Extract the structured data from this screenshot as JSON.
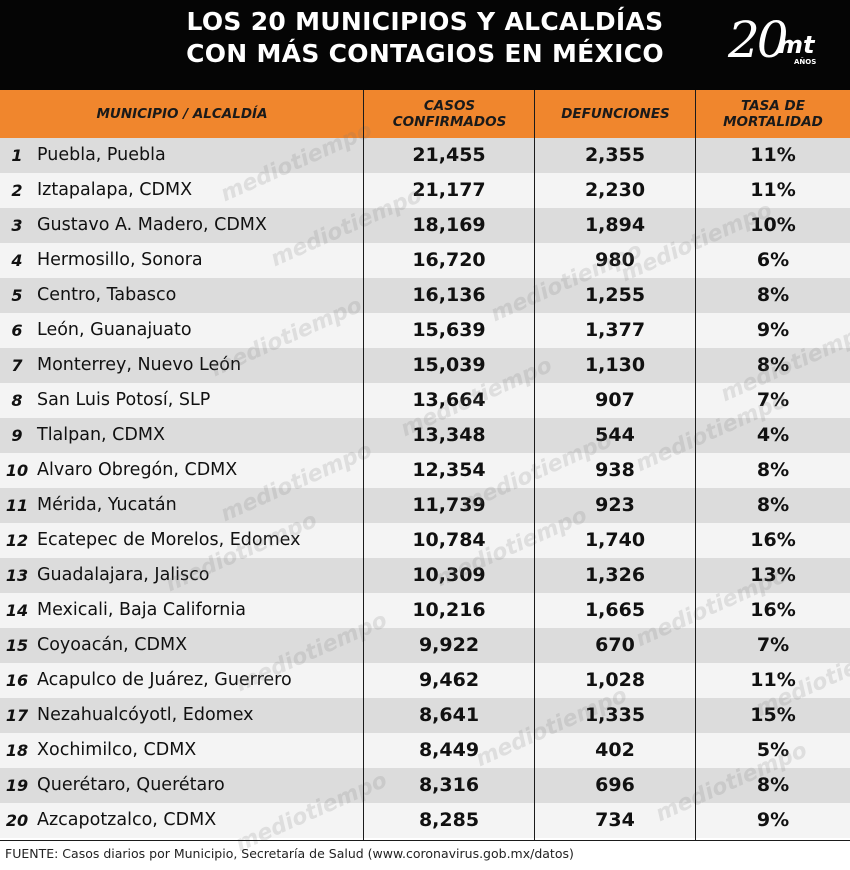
{
  "header": {
    "title_line1": "LOS 20 MUNICIPIOS Y ALCALDÍAS",
    "title_line2": "CON MÁS CONTAGIOS EN MÉXICO",
    "logo_number": "20",
    "logo_brand": "mt",
    "logo_sub": "AÑOS"
  },
  "watermark_text": "mediotiempo",
  "chart_data": {
    "type": "table",
    "columns": [
      {
        "line1": "MUNICIPIO / ALCALDÍA",
        "line2": ""
      },
      {
        "line1": "CASOS",
        "line2": "CONFIRMADOS"
      },
      {
        "line1": "DEFUNCIONES",
        "line2": ""
      },
      {
        "line1": "TASA DE",
        "line2": "MORTALIDAD"
      }
    ],
    "rows": [
      {
        "rank": "1",
        "name": "Puebla, Puebla",
        "cases": "21,455",
        "deaths": "2,355",
        "rate": "11%"
      },
      {
        "rank": "2",
        "name": "Iztapalapa, CDMX",
        "cases": "21,177",
        "deaths": "2,230",
        "rate": "11%"
      },
      {
        "rank": "3",
        "name": "Gustavo A. Madero, CDMX",
        "cases": "18,169",
        "deaths": "1,894",
        "rate": "10%"
      },
      {
        "rank": "4",
        "name": "Hermosillo, Sonora",
        "cases": "16,720",
        "deaths": "980",
        "rate": "6%"
      },
      {
        "rank": "5",
        "name": "Centro, Tabasco",
        "cases": "16,136",
        "deaths": "1,255",
        "rate": "8%"
      },
      {
        "rank": "6",
        "name": "León, Guanajuato",
        "cases": "15,639",
        "deaths": "1,377",
        "rate": "9%"
      },
      {
        "rank": "7",
        "name": "Monterrey, Nuevo León",
        "cases": "15,039",
        "deaths": "1,130",
        "rate": "8%"
      },
      {
        "rank": "8",
        "name": "San Luis Potosí, SLP",
        "cases": "13,664",
        "deaths": "907",
        "rate": "7%"
      },
      {
        "rank": "9",
        "name": "Tlalpan, CDMX",
        "cases": "13,348",
        "deaths": "544",
        "rate": "4%"
      },
      {
        "rank": "10",
        "name": "Alvaro Obregón, CDMX",
        "cases": "12,354",
        "deaths": "938",
        "rate": "8%"
      },
      {
        "rank": "11",
        "name": "Mérida, Yucatán",
        "cases": "11,739",
        "deaths": "923",
        "rate": "8%"
      },
      {
        "rank": "12",
        "name": "Ecatepec de Morelos, Edomex",
        "cases": "10,784",
        "deaths": "1,740",
        "rate": "16%"
      },
      {
        "rank": "13",
        "name": "Guadalajara, Jalisco",
        "cases": "10,309",
        "deaths": "1,326",
        "rate": "13%"
      },
      {
        "rank": "14",
        "name": "Mexicali, Baja California",
        "cases": "10,216",
        "deaths": "1,665",
        "rate": "16%"
      },
      {
        "rank": "15",
        "name": "Coyoacán, CDMX",
        "cases": "9,922",
        "deaths": "670",
        "rate": "7%"
      },
      {
        "rank": "16",
        "name": "Acapulco de Juárez, Guerrero",
        "cases": "9,462",
        "deaths": "1,028",
        "rate": "11%"
      },
      {
        "rank": "17",
        "name": "Nezahualcóyotl, Edomex",
        "cases": "8,641",
        "deaths": "1,335",
        "rate": "15%"
      },
      {
        "rank": "18",
        "name": "Xochimilco, CDMX",
        "cases": "8,449",
        "deaths": "402",
        "rate": "5%"
      },
      {
        "rank": "19",
        "name": "Querétaro, Querétaro",
        "cases": "8,316",
        "deaths": "696",
        "rate": "8%"
      },
      {
        "rank": "20",
        "name": "Azcapotzalco, CDMX",
        "cases": "8,285",
        "deaths": "734",
        "rate": "9%"
      }
    ]
  },
  "footer": {
    "source": "FUENTE: Casos diarios por Municipio, Secretaría de Salud (www.coronavirus.gob.mx/datos)"
  },
  "colors": {
    "header_bg": "#050505",
    "header_row": "#f0862d",
    "row_dark": "#dcdcdc",
    "row_light": "#f4f4f4"
  }
}
